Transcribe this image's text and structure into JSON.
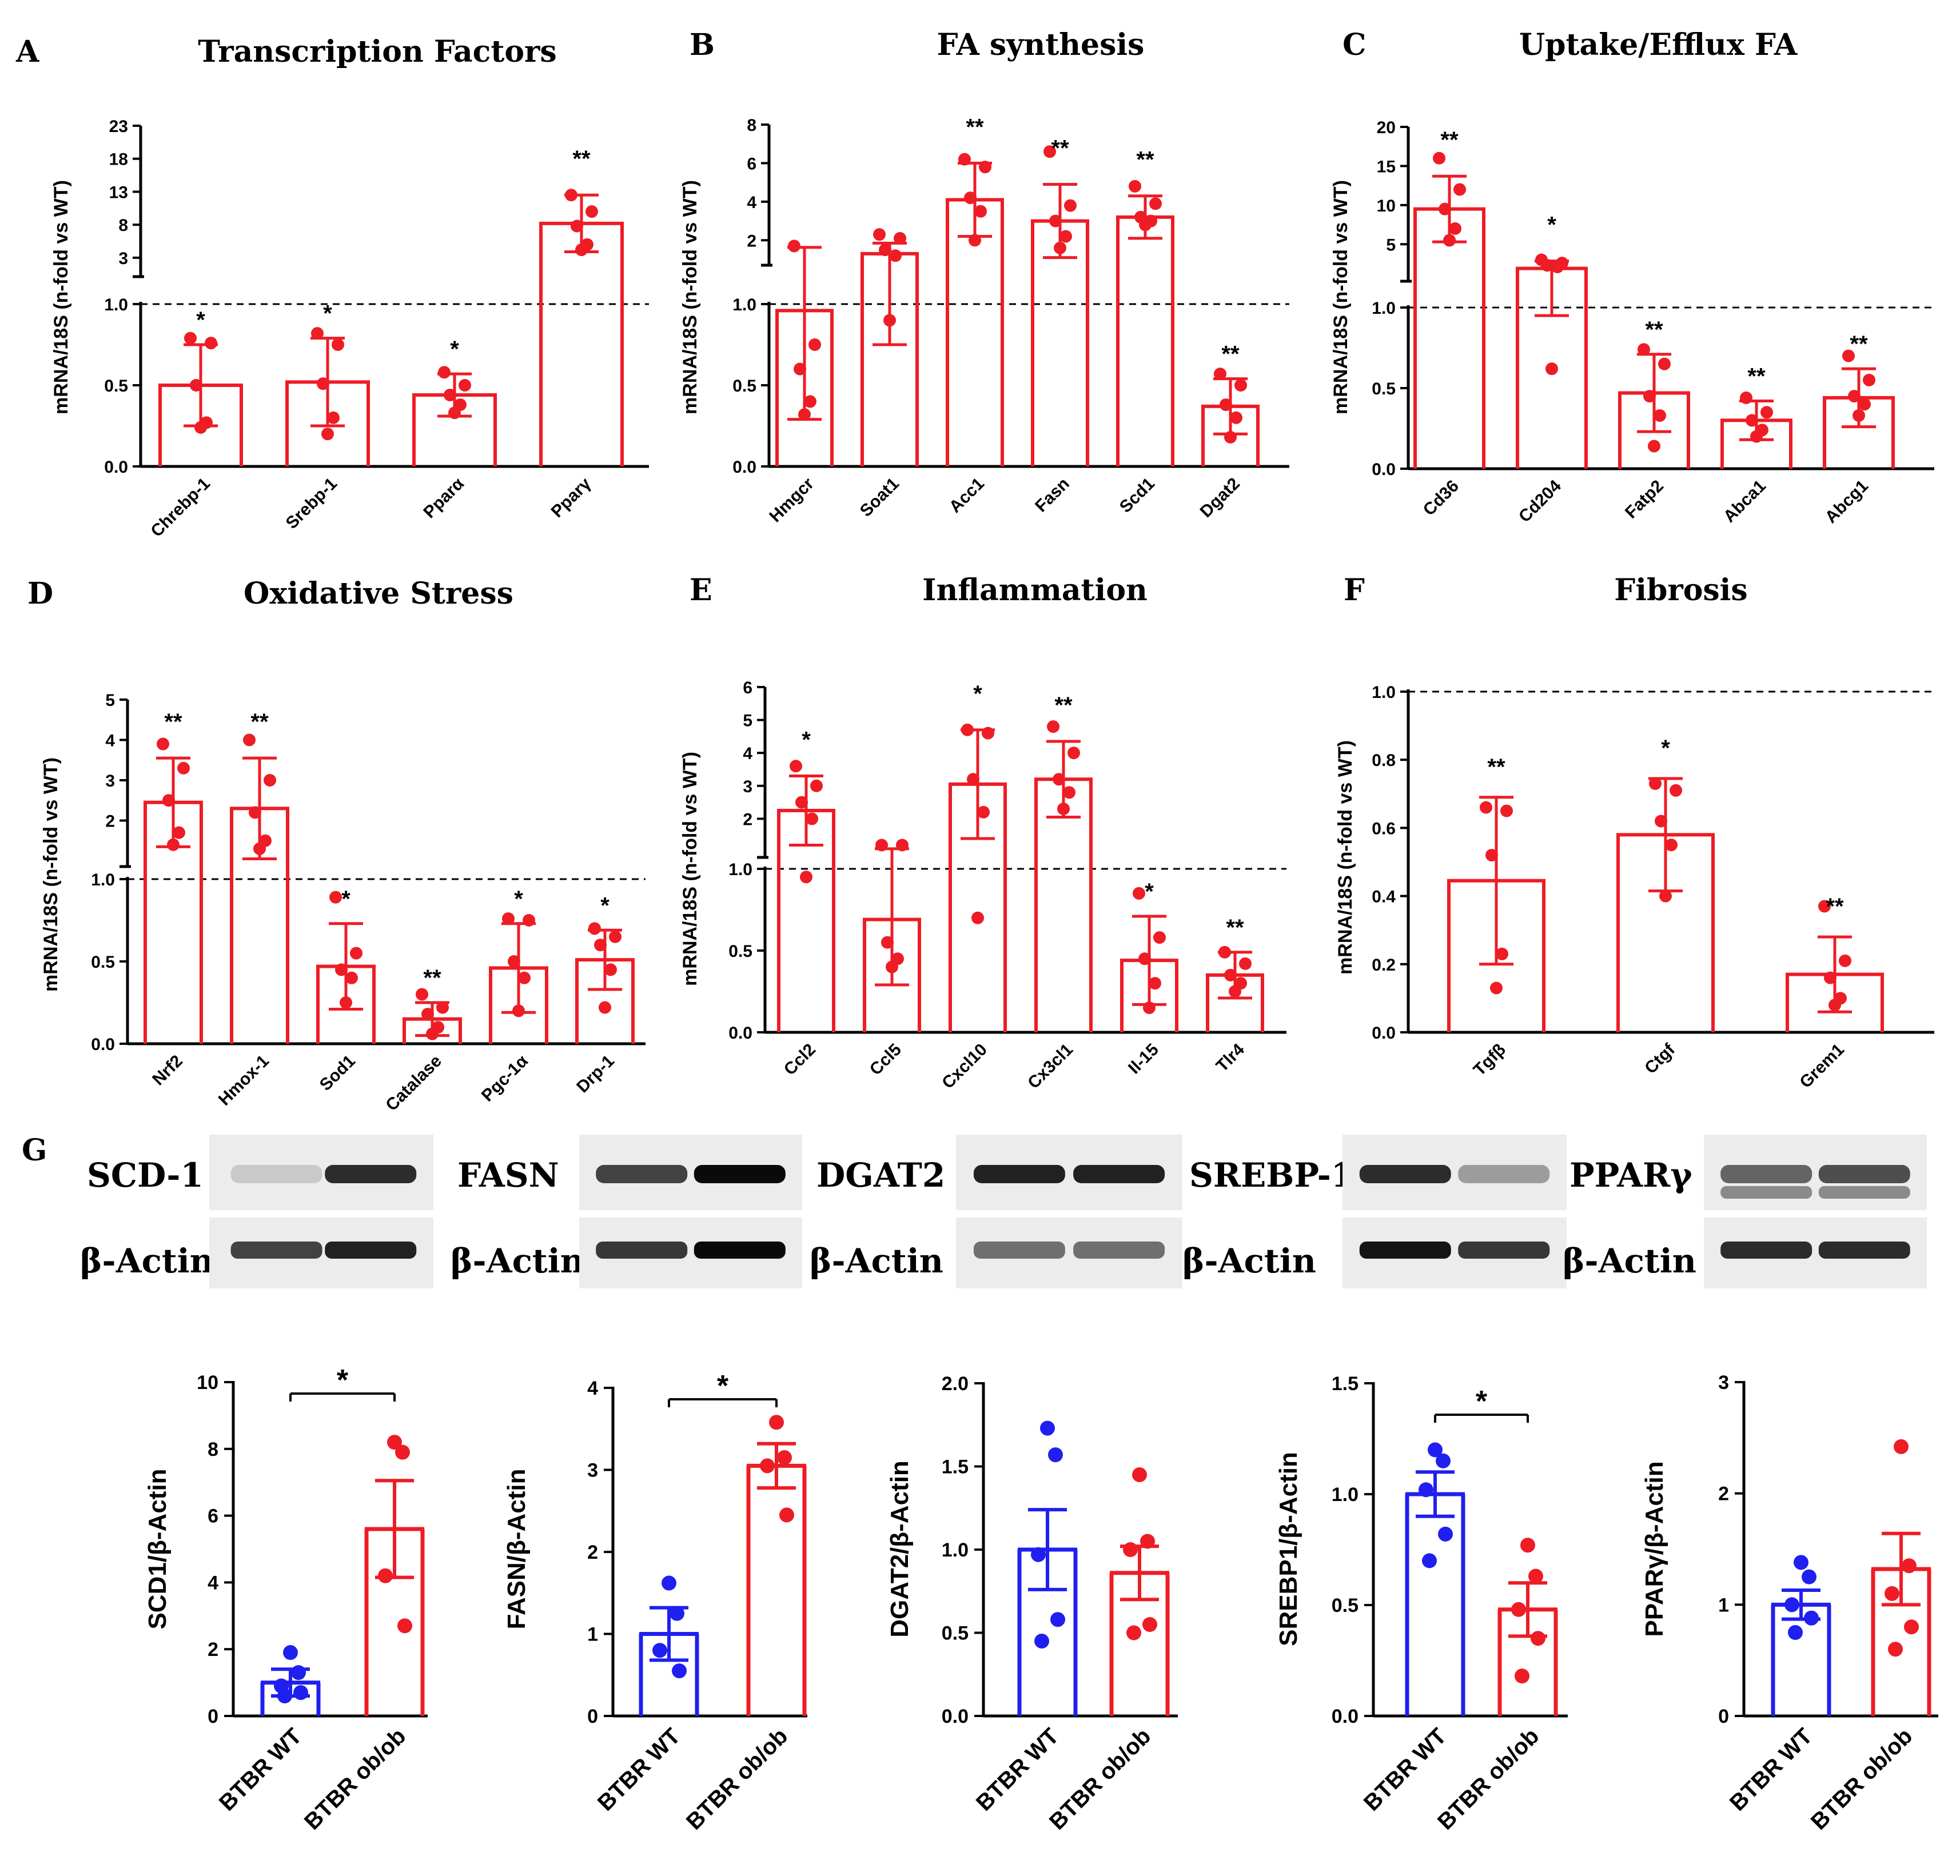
{
  "figure": {
    "colors": {
      "red": "#ee1c25",
      "blue": "#1f1ff0",
      "black": "#000000"
    }
  },
  "chart_data": [
    {
      "id": "A",
      "type": "bar",
      "letter": "A",
      "title": "Transcription Factors",
      "ylabel": "mRNA/18S (n-fold vs WT)",
      "lower": {
        "ylim": [
          0,
          1
        ],
        "ticks": [
          "0.0",
          "0.5",
          "1.0"
        ],
        "tickvals": [
          0,
          0.5,
          1.0
        ]
      },
      "upper": {
        "ylim": [
          1,
          23
        ],
        "ticks": [
          "3",
          "8",
          "13",
          "18",
          "23"
        ],
        "tickvals": [
          3,
          8,
          13,
          18,
          23
        ]
      },
      "categories": [
        "Chrebp-1",
        "Srebp-1",
        "Pparα",
        "Pparγ"
      ],
      "values": [
        0.5,
        0.52,
        0.44,
        8.2
      ],
      "errors": [
        0.25,
        0.27,
        0.13,
        4.3
      ],
      "points": [
        [
          0.79,
          0.76,
          0.5,
          0.27,
          0.24
        ],
        [
          0.82,
          0.75,
          0.51,
          0.3,
          0.2
        ],
        [
          0.58,
          0.5,
          0.44,
          0.38,
          0.33
        ],
        [
          12.5,
          10.0,
          7.8,
          5.0,
          4.2
        ]
      ],
      "significance": [
        "*",
        "*",
        "*",
        "**"
      ]
    },
    {
      "id": "B",
      "type": "bar",
      "letter": "B",
      "title": "FA synthesis",
      "ylabel": "mRNA/18S (n-fold vs WT)",
      "lower": {
        "ylim": [
          0,
          1
        ],
        "ticks": [
          "0.0",
          "0.5",
          "1.0"
        ],
        "tickvals": [
          0,
          0.5,
          1.0
        ]
      },
      "upper": {
        "ylim": [
          1,
          8
        ],
        "ticks": [
          "2",
          "4",
          "6",
          "8"
        ],
        "tickvals": [
          2,
          4,
          6,
          8
        ]
      },
      "categories": [
        "Hmgcr",
        "Soat1",
        "Acc1",
        "Fasn",
        "Scd1",
        "Dgat2"
      ],
      "values": [
        0.96,
        1.3,
        4.1,
        3.0,
        3.2,
        0.37
      ],
      "errors": [
        0.67,
        0.55,
        1.9,
        1.9,
        1.1,
        0.17
      ],
      "points": [
        [
          1.7,
          0.75,
          0.6,
          0.4,
          0.32
        ],
        [
          2.3,
          2.1,
          1.5,
          1.2,
          0.9
        ],
        [
          6.2,
          5.8,
          4.2,
          3.5,
          2.0
        ],
        [
          6.6,
          3.8,
          3.0,
          2.2,
          1.6
        ],
        [
          4.8,
          3.9,
          3.2,
          3.0,
          2.8
        ],
        [
          0.57,
          0.5,
          0.38,
          0.3,
          0.18
        ]
      ],
      "significance": [
        "",
        "",
        "**",
        "**",
        "**",
        "**"
      ]
    },
    {
      "id": "C",
      "type": "bar",
      "letter": "C",
      "title": "Uptake/Efflux FA",
      "ylabel": "mRNA/18S (n-fold vs WT)",
      "lower": {
        "ylim": [
          0,
          1
        ],
        "ticks": [
          "0.0",
          "0.5",
          "1.0"
        ],
        "tickvals": [
          0,
          0.5,
          1.0
        ]
      },
      "upper": {
        "ylim": [
          1,
          20
        ],
        "ticks": [
          "5",
          "10",
          "15",
          "20"
        ],
        "tickvals": [
          5,
          10,
          15,
          20
        ]
      },
      "categories": [
        "Cd36",
        "Cd204",
        "Fatp2",
        "Abca1",
        "Abcg1"
      ],
      "values": [
        9.5,
        1.9,
        0.47,
        0.3,
        0.44
      ],
      "errors": [
        4.2,
        0.95,
        0.24,
        0.12,
        0.18
      ],
      "points": [
        [
          16.0,
          12.0,
          9.5,
          7.0,
          5.5
        ],
        [
          3.0,
          2.6,
          2.3,
          2.1,
          0.62
        ],
        [
          0.74,
          0.65,
          0.45,
          0.33,
          0.14
        ],
        [
          0.44,
          0.35,
          0.3,
          0.24,
          0.2
        ],
        [
          0.7,
          0.55,
          0.45,
          0.4,
          0.33
        ]
      ],
      "significance": [
        "**",
        "*",
        "**",
        "**",
        "**"
      ]
    },
    {
      "id": "D",
      "type": "bar",
      "letter": "D",
      "title": "Oxidative Stress",
      "ylabel": "mRNA/18S (n-fold vs WT)",
      "lower": {
        "ylim": [
          0,
          1
        ],
        "ticks": [
          "0.0",
          "0.5",
          "1.0"
        ],
        "tickvals": [
          0,
          0.5,
          1.0
        ]
      },
      "upper": {
        "ylim": [
          1,
          5
        ],
        "ticks": [
          "2",
          "3",
          "4",
          "5"
        ],
        "tickvals": [
          2,
          3,
          4,
          5
        ]
      },
      "categories": [
        "Nrf2",
        "Hmox-1",
        "Sod1",
        "Catalase",
        "Pgc-1α",
        "Drp-1"
      ],
      "values": [
        2.45,
        2.3,
        0.47,
        0.15,
        0.46,
        0.51
      ],
      "errors": [
        1.1,
        1.25,
        0.26,
        0.1,
        0.27,
        0.18
      ],
      "points": [
        [
          3.9,
          3.3,
          2.5,
          1.7,
          1.4
        ],
        [
          4.0,
          3.0,
          2.2,
          1.5,
          1.3
        ],
        [
          0.89,
          0.55,
          0.45,
          0.4,
          0.25
        ],
        [
          0.3,
          0.22,
          0.18,
          0.1,
          0.06
        ],
        [
          0.76,
          0.75,
          0.5,
          0.4,
          0.2
        ],
        [
          0.7,
          0.65,
          0.6,
          0.45,
          0.22
        ]
      ],
      "significance": [
        "**",
        "**",
        "*",
        "**",
        "*",
        "*"
      ]
    },
    {
      "id": "E",
      "type": "bar",
      "letter": "E",
      "title": "Inflammation",
      "ylabel": "mRNA/18S (n-fold vs WT)",
      "lower": {
        "ylim": [
          0,
          1
        ],
        "ticks": [
          "0.0",
          "0.5",
          "1.0"
        ],
        "tickvals": [
          0,
          0.5,
          1.0
        ]
      },
      "upper": {
        "ylim": [
          1,
          6
        ],
        "ticks": [
          "2",
          "3",
          "4",
          "5",
          "6"
        ],
        "tickvals": [
          2,
          3,
          4,
          5,
          6
        ]
      },
      "categories": [
        "Ccl2",
        "Ccl5",
        "Cxcl10",
        "Cx3cl1",
        "Il-15",
        "Tlr4"
      ],
      "values": [
        2.25,
        0.69,
        3.05,
        3.2,
        0.44,
        0.35
      ],
      "errors": [
        1.05,
        0.4,
        1.65,
        1.15,
        0.27,
        0.14
      ],
      "points": [
        [
          3.6,
          3.0,
          2.5,
          2.0,
          0.95
        ],
        [
          1.2,
          1.2,
          0.55,
          0.45,
          0.4
        ],
        [
          4.7,
          4.6,
          3.2,
          2.2,
          0.7
        ],
        [
          4.8,
          4.0,
          3.2,
          2.8,
          2.3
        ],
        [
          0.85,
          0.58,
          0.45,
          0.3,
          0.15
        ],
        [
          0.49,
          0.42,
          0.35,
          0.3,
          0.25
        ]
      ],
      "significance": [
        "*",
        "",
        "*",
        "**",
        "*",
        "**"
      ]
    },
    {
      "id": "F",
      "type": "bar",
      "letter": "F",
      "title": "Fibrosis",
      "ylabel": "mRNA/18S (n-fold vs WT)",
      "lower": {
        "ylim": [
          0,
          1
        ],
        "ticks": [
          "0.0",
          "0.2",
          "0.4",
          "0.6",
          "0.8",
          "1.0"
        ],
        "tickvals": [
          0,
          0.2,
          0.4,
          0.6,
          0.8,
          1.0
        ]
      },
      "upper": null,
      "categories": [
        "Tgfβ",
        "Ctgf",
        "Grem1"
      ],
      "values": [
        0.445,
        0.58,
        0.17
      ],
      "errors": [
        0.245,
        0.165,
        0.11
      ],
      "points": [
        [
          0.66,
          0.65,
          0.52,
          0.23,
          0.13
        ],
        [
          0.73,
          0.71,
          0.62,
          0.55,
          0.4
        ],
        [
          0.37,
          0.21,
          0.16,
          0.1,
          0.08
        ]
      ],
      "significance": [
        "**",
        "*",
        "**"
      ]
    },
    {
      "id": "G1",
      "type": "bar",
      "ylabel": "SCD1/β-Actin",
      "ylim": [
        0,
        10
      ],
      "ticks": [
        "0",
        "2",
        "4",
        "6",
        "8",
        "10"
      ],
      "tickvals": [
        0,
        2,
        4,
        6,
        8,
        10
      ],
      "categories": [
        "BTBR WT",
        "BTBR ob/ob"
      ],
      "values": [
        1.0,
        5.6
      ],
      "errors": [
        0.4,
        1.45
      ],
      "points": [
        [
          1.9,
          1.3,
          0.9,
          0.7,
          0.6
        ],
        [
          8.2,
          7.9,
          4.2,
          2.7
        ]
      ],
      "significance": "*"
    },
    {
      "id": "G2",
      "type": "bar",
      "ylabel": "FASN/β-Actin",
      "ylim": [
        0,
        4
      ],
      "ticks": [
        "0",
        "1",
        "2",
        "3",
        "4"
      ],
      "tickvals": [
        0,
        1,
        2,
        3,
        4
      ],
      "categories": [
        "BTBR WT",
        "BTBR ob/ob"
      ],
      "values": [
        1.0,
        3.05
      ],
      "errors": [
        0.32,
        0.27
      ],
      "points": [
        [
          1.62,
          1.25,
          0.8,
          0.55
        ],
        [
          3.58,
          3.15,
          3.05,
          2.45
        ]
      ],
      "significance": "*"
    },
    {
      "id": "G3",
      "type": "bar",
      "ylabel": "DGAT2/β-Actin",
      "ylim": [
        0,
        2
      ],
      "ticks": [
        "0.0",
        "0.5",
        "1.0",
        "1.5",
        "2.0"
      ],
      "tickvals": [
        0,
        0.5,
        1.0,
        1.5,
        2.0
      ],
      "categories": [
        "BTBR WT",
        "BTBR ob/ob"
      ],
      "values": [
        1.0,
        0.86
      ],
      "errors": [
        0.24,
        0.16
      ],
      "points": [
        [
          1.73,
          1.57,
          0.97,
          0.58,
          0.45
        ],
        [
          1.45,
          1.05,
          1.0,
          0.55,
          0.5
        ]
      ],
      "significance": ""
    },
    {
      "id": "G4",
      "type": "bar",
      "ylabel": "SREBP1/β-Actin",
      "ylim": [
        0,
        1.5
      ],
      "ticks": [
        "0.0",
        "0.5",
        "1.0",
        "1.5"
      ],
      "tickvals": [
        0,
        0.5,
        1.0,
        1.5
      ],
      "categories": [
        "BTBR WT",
        "BTBR ob/ob"
      ],
      "values": [
        1.0,
        0.48
      ],
      "errors": [
        0.1,
        0.12
      ],
      "points": [
        [
          1.2,
          1.15,
          1.02,
          0.82,
          0.7
        ],
        [
          0.77,
          0.63,
          0.48,
          0.35,
          0.18
        ]
      ],
      "significance": "*"
    },
    {
      "id": "G5",
      "type": "bar",
      "ylabel": "PPARγ/β-Actin",
      "ylim": [
        0,
        3
      ],
      "ticks": [
        "0",
        "1",
        "2",
        "3"
      ],
      "tickvals": [
        0,
        1,
        2,
        3
      ],
      "categories": [
        "BTBR WT",
        "BTBR ob/ob"
      ],
      "values": [
        1.0,
        1.32
      ],
      "errors": [
        0.13,
        0.32
      ],
      "points": [
        [
          1.38,
          1.25,
          1.0,
          0.88,
          0.75
        ],
        [
          2.42,
          1.35,
          1.1,
          0.8,
          0.6
        ]
      ],
      "significance": ""
    }
  ],
  "western": {
    "letter": "G",
    "blots": [
      {
        "protein": "SCD-1",
        "loading": "β-Actin"
      },
      {
        "protein": "FASN",
        "loading": "β-Actin"
      },
      {
        "protein": "DGAT2",
        "loading": "β-Actin"
      },
      {
        "protein": "SREBP-1",
        "loading": "β-Actin"
      },
      {
        "protein": "PPARγ",
        "loading": "β-Actin"
      }
    ]
  }
}
